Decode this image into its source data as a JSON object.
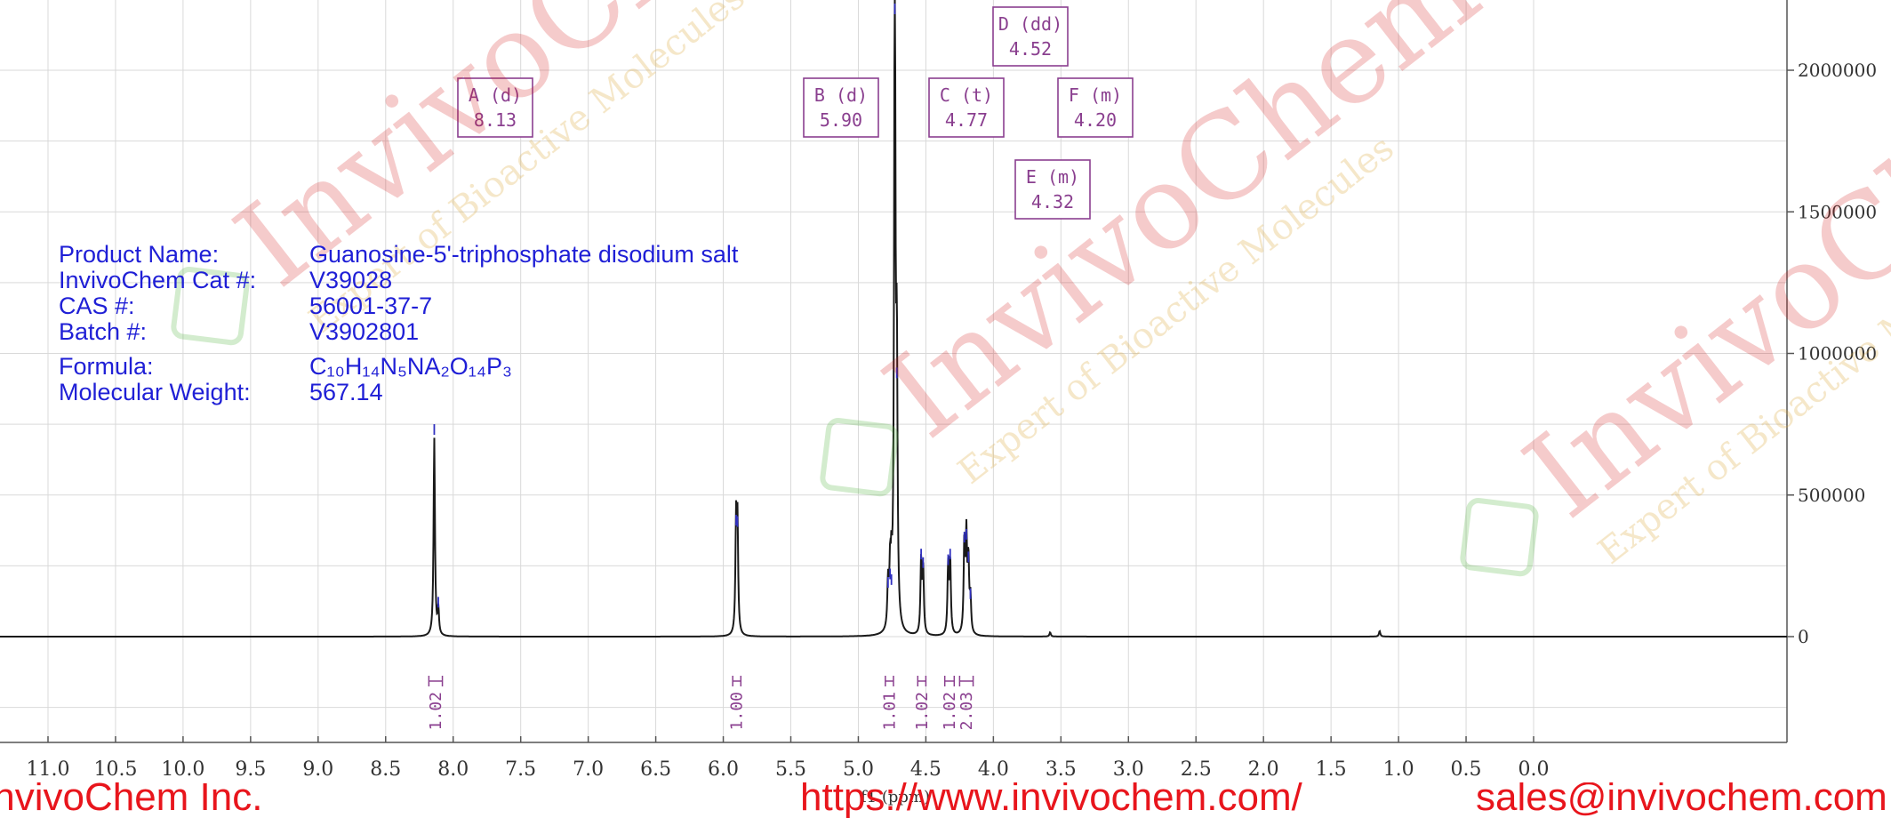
{
  "chart_data": {
    "type": "line",
    "title": "",
    "xlabel": "f1 (ppm)",
    "ylabel": "",
    "x_reversed": true,
    "xlim": [
      -0.3,
      11.2
    ],
    "ylim": [
      -350000,
      2300000
    ],
    "x_ticks": [
      "11.0",
      "10.5",
      "10.0",
      "9.5",
      "9.0",
      "8.5",
      "8.0",
      "7.5",
      "7.0",
      "6.5",
      "6.0",
      "5.5",
      "5.0",
      "4.5",
      "4.0",
      "3.5",
      "3.0",
      "2.5",
      "2.0",
      "1.5",
      "1.0",
      "0.5",
      "0.0"
    ],
    "x_tick_values": [
      11.0,
      10.5,
      10.0,
      9.5,
      9.0,
      8.5,
      8.0,
      7.5,
      7.0,
      6.5,
      6.0,
      5.5,
      5.0,
      4.5,
      4.0,
      3.5,
      3.0,
      2.5,
      2.0,
      1.5,
      1.0,
      0.5,
      0.0
    ],
    "y_ticks": [
      "0",
      "500000",
      "1000000",
      "1500000",
      "2000000"
    ],
    "y_tick_values": [
      0,
      500000,
      1000000,
      1500000,
      2000000
    ],
    "grid": true,
    "peaks": [
      {
        "shift": 8.14,
        "height": 700000
      },
      {
        "shift": 8.11,
        "height": 90000
      },
      {
        "shift": 5.905,
        "height": 380000
      },
      {
        "shift": 5.895,
        "height": 375000
      },
      {
        "shift": 4.78,
        "height": 160000
      },
      {
        "shift": 4.765,
        "height": 190000
      },
      {
        "shift": 4.755,
        "height": 170000
      },
      {
        "shift": 4.73,
        "height": 2400000
      },
      {
        "shift": 4.715,
        "height": 900000
      },
      {
        "shift": 4.535,
        "height": 260000
      },
      {
        "shift": 4.52,
        "height": 230000
      },
      {
        "shift": 4.335,
        "height": 240000
      },
      {
        "shift": 4.32,
        "height": 260000
      },
      {
        "shift": 4.215,
        "height": 320000
      },
      {
        "shift": 4.2,
        "height": 330000
      },
      {
        "shift": 4.185,
        "height": 250000
      },
      {
        "shift": 4.17,
        "height": 120000
      },
      {
        "shift": 3.58,
        "height": 15000
      },
      {
        "shift": 1.14,
        "height": 20000
      }
    ],
    "peak_labels": [
      {
        "name": "A (d)",
        "value": "8.13"
      },
      {
        "name": "B (d)",
        "value": "5.90"
      },
      {
        "name": "C (t)",
        "value": "4.77"
      },
      {
        "name": "D (dd)",
        "value": "4.52"
      },
      {
        "name": "F (m)",
        "value": "4.20"
      },
      {
        "name": "E (m)",
        "value": "4.32"
      }
    ],
    "integrals": [
      {
        "from": 8.18,
        "to": 8.08,
        "value": "1.02"
      },
      {
        "from": 5.93,
        "to": 5.87,
        "value": "1.00"
      },
      {
        "from": 4.8,
        "to": 4.74,
        "value": "1.01"
      },
      {
        "from": 4.56,
        "to": 4.5,
        "value": "1.02"
      },
      {
        "from": 4.36,
        "to": 4.29,
        "value": "1.02"
      },
      {
        "from": 4.25,
        "to": 4.15,
        "value": "2.03"
      }
    ]
  },
  "info": {
    "product_name_label": "Product Name:",
    "product_name_value": "Guanosine-5'-triphosphate disodium salt",
    "cat_label": "InvivoChem Cat #:",
    "cat_value": "V39028",
    "cas_label": "CAS #:",
    "cas_value": "56001-37-7",
    "batch_label": "Batch #:",
    "batch_value": "V3902801",
    "formula_label": "Formula:",
    "formula_value": "C₁₀H₁₄N₅NA₂O₁₄P₃",
    "mw_label": "Molecular Weight:",
    "mw_value": "567.14"
  },
  "footer": {
    "part1": "InvivoChem Inc.",
    "part2": "https://www.invivochem.com/",
    "part3": "sales@invivochem.com"
  },
  "watermark": {
    "brand": "InvivoChem",
    "tagline": "Expert of Bioactive Molecules"
  },
  "colors": {
    "spectrum": "#1a1a1a",
    "peak_marker": "#3030c0",
    "label_box": "#8a3f8f",
    "info_text": "#1f1fd6",
    "footer_text": "#e8151c"
  }
}
